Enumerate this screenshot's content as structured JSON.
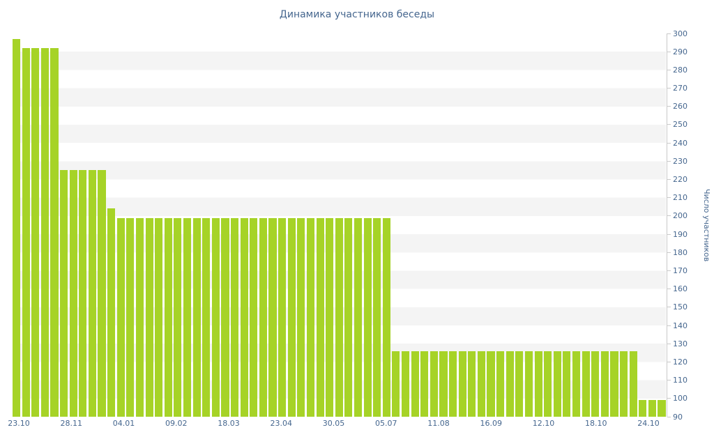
{
  "title": "Динамика участников беседы",
  "chart_data": {
    "type": "bar",
    "title": "Динамика участников беседы",
    "xlabel": "",
    "ylabel": "Число участников",
    "ylim": [
      90,
      300
    ],
    "ytick_step": 10,
    "grid": "horizontal-stripes",
    "legend": "off",
    "bar_color": "#a6d327",
    "text_color": "#45668e",
    "stripe_color": "#f4f4f4",
    "x_tick_labels": [
      "23.10",
      "28.11",
      "04.01",
      "09.02",
      "18.03",
      "23.04",
      "30.05",
      "05.07",
      "11.08",
      "16.09",
      "12.10",
      "18.10",
      "24.10"
    ],
    "values": [
      297,
      292,
      292,
      292,
      292,
      225,
      225,
      225,
      225,
      225,
      204,
      199,
      199,
      199,
      199,
      199,
      199,
      199,
      199,
      199,
      199,
      199,
      199,
      199,
      199,
      199,
      199,
      199,
      199,
      199,
      199,
      199,
      199,
      199,
      199,
      199,
      199,
      199,
      199,
      199,
      126,
      126,
      126,
      126,
      126,
      126,
      126,
      126,
      126,
      126,
      126,
      126,
      126,
      126,
      126,
      126,
      126,
      126,
      126,
      126,
      126,
      126,
      126,
      126,
      126,
      126,
      99,
      99,
      99
    ]
  }
}
